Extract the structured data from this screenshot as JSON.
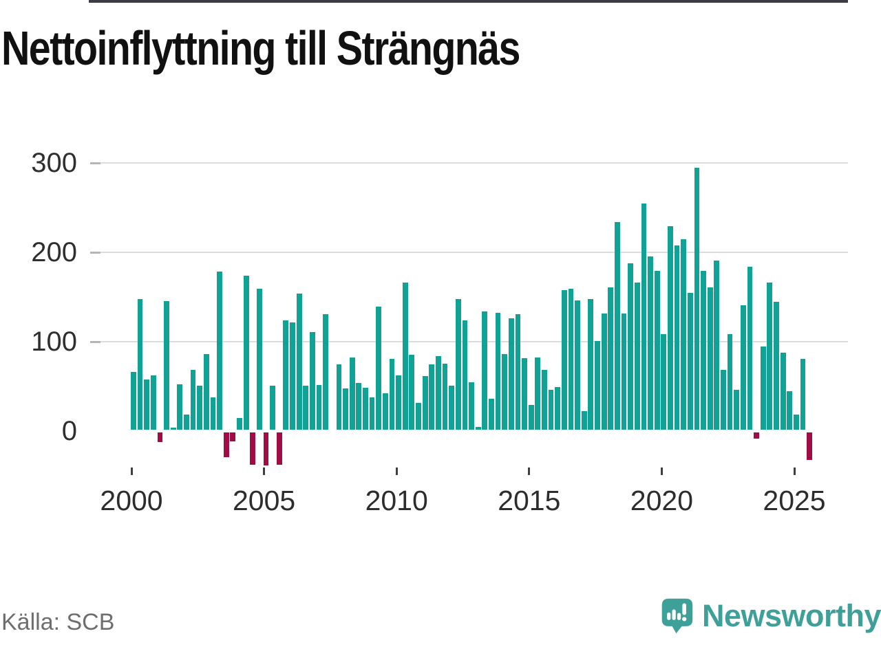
{
  "title": "Nettoinflyttning till Strängnäs",
  "source": "Källa: SCB",
  "logo": {
    "text": "Newsworthy",
    "color": "#3da099"
  },
  "colors": {
    "positive_bar": "#11a296",
    "negative_bar": "#a00d45",
    "gridline": "#dcdcdc",
    "zero_line": "#3b3b44",
    "axis_text": "#2f2f2f",
    "source_text": "#6e6e6e"
  },
  "chart_data": {
    "type": "bar",
    "title": "Nettoinflyttning till Strängnäs",
    "frequency": "quarterly",
    "start_year": 2000,
    "start_quarter": 1,
    "values": [
      65,
      146,
      56,
      61,
      -11,
      144,
      2,
      51,
      17,
      67,
      49,
      85,
      36,
      177,
      -28,
      -10,
      13,
      172,
      -36,
      158,
      -37,
      49,
      -36,
      122,
      120,
      152,
      49,
      109,
      50,
      129,
      0,
      73,
      46,
      81,
      52,
      47,
      36,
      138,
      41,
      79,
      61,
      165,
      84,
      30,
      60,
      73,
      82,
      74,
      49,
      146,
      122,
      53,
      3,
      132,
      35,
      131,
      85,
      125,
      129,
      80,
      28,
      81,
      67,
      45,
      48,
      156,
      158,
      145,
      21,
      146,
      99,
      130,
      159,
      232,
      130,
      186,
      165,
      253,
      194,
      178,
      107,
      228,
      206,
      213,
      153,
      293,
      178,
      159,
      189,
      67,
      107,
      45,
      139,
      182,
      -7,
      93,
      165,
      143,
      86,
      43,
      17,
      79,
      -31
    ],
    "y_ticks": [
      0,
      100,
      200,
      300
    ],
    "x_ticks": [
      2000,
      2005,
      2010,
      2015,
      2020,
      2025
    ],
    "ylim": [
      -50,
      320
    ],
    "grid": "horizontal",
    "legend": "none",
    "xlabel": "",
    "ylabel": ""
  }
}
